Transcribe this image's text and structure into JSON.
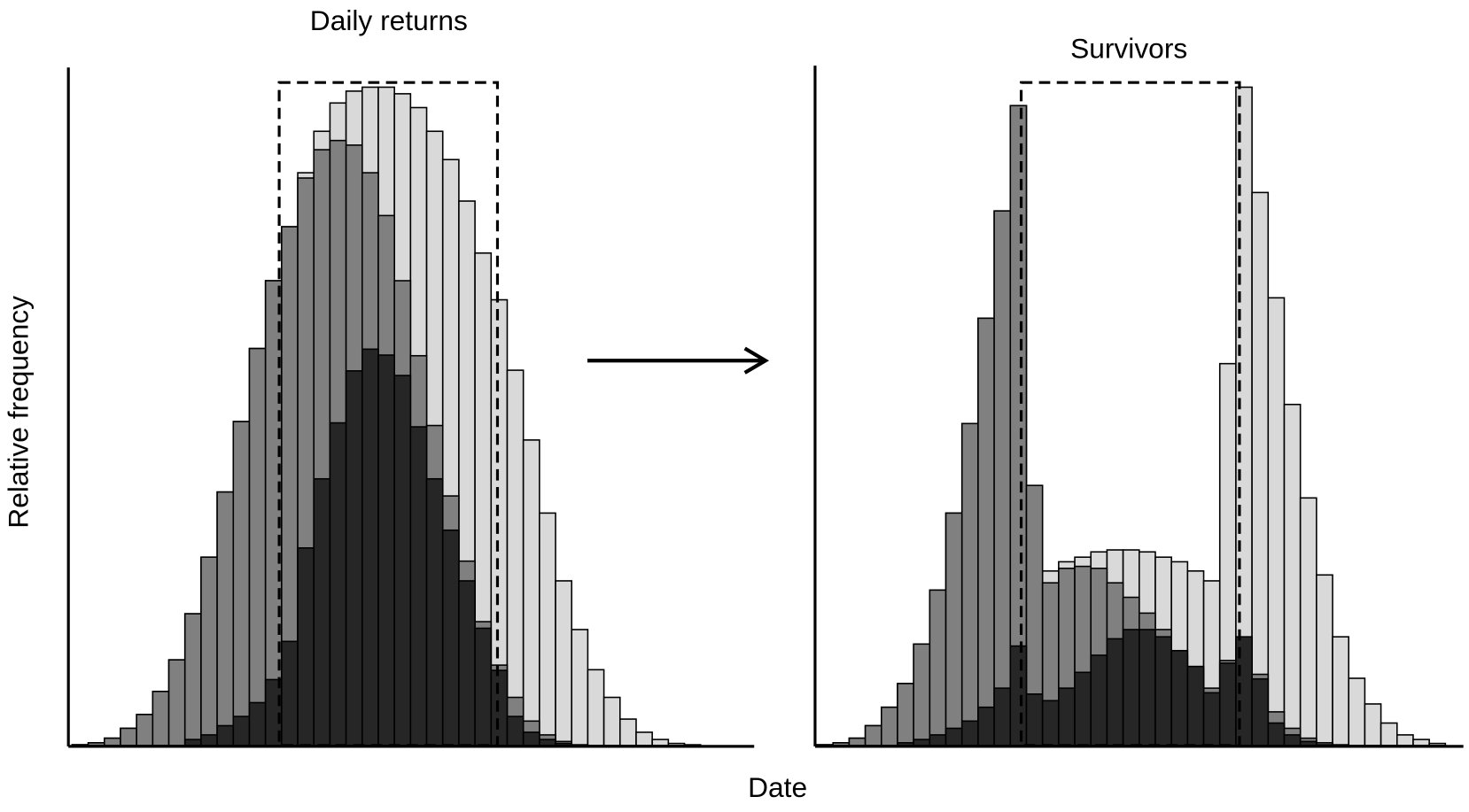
{
  "ylabel": "Relative frequency",
  "xlabel": "Date",
  "chart_data": [
    {
      "type": "bar",
      "title": "Daily returns",
      "ylim": [
        0,
        100
      ],
      "categories": [
        null,
        null,
        null,
        null,
        null,
        null,
        null,
        null,
        null,
        null,
        null,
        null,
        null,
        null,
        null,
        null,
        null,
        null,
        null,
        null,
        null,
        null,
        null,
        null,
        null,
        null,
        null,
        null,
        null,
        null,
        null,
        null,
        null,
        null,
        null,
        null,
        null,
        null,
        null,
        null,
        null,
        null
      ],
      "series": [
        {
          "color": "#d9d9d9",
          "values": [
            0.1,
            0.4,
            1.1,
            2.6,
            4.7,
            8.2,
            13,
            20,
            28.6,
            38.5,
            49.2,
            60.3,
            70.6,
            78.8,
            87,
            93.3,
            97.6,
            99.4,
            100,
            100,
            99,
            96.9,
            93.3,
            89,
            82.7,
            74.8,
            67.7,
            57,
            46.4,
            35.3,
            25,
            17.6,
            11.5,
            7.3,
            4,
            2,
            0.9,
            0.3,
            0.1,
            0,
            0,
            0
          ]
        },
        {
          "color": "#808080",
          "values": [
            0.1,
            0.4,
            1.1,
            2.6,
            4.7,
            8.2,
            13,
            20,
            28.6,
            38.5,
            49.2,
            60.3,
            70.6,
            78.8,
            86.2,
            90.5,
            91.9,
            91.2,
            87,
            80.5,
            70.6,
            59.2,
            48.6,
            37.9,
            28,
            18.8,
            12.2,
            7.3,
            3.7,
            1.6,
            0.6,
            0.1,
            0,
            0,
            0,
            0,
            0,
            0,
            0,
            0,
            0,
            0
          ]
        },
        {
          "color": "#262626",
          "values": [
            0,
            0,
            0,
            0,
            0,
            0,
            0,
            0.9,
            1.6,
            3,
            4.4,
            6.5,
            10,
            15.8,
            30,
            40.5,
            49,
            56.9,
            60.2,
            59.3,
            56.2,
            48.4,
            40.5,
            32.7,
            25,
            17.8,
            11.4,
            4.4,
            2,
            0.9,
            0.3,
            0,
            0,
            0,
            0,
            0,
            0,
            0,
            0,
            0,
            0,
            0
          ]
        }
      ]
    },
    {
      "type": "bar",
      "title": "Survivors",
      "ylim": [
        0,
        100
      ],
      "categories": [
        null,
        null,
        null,
        null,
        null,
        null,
        null,
        null,
        null,
        null,
        null,
        null,
        null,
        null,
        null,
        null,
        null,
        null,
        null,
        null,
        null,
        null,
        null,
        null,
        null,
        null,
        null,
        null,
        null,
        null,
        null,
        null,
        null,
        null,
        null,
        null,
        null,
        null,
        null,
        null
      ],
      "series": [
        {
          "color": "#d9d9d9",
          "values": [
            0.1,
            0.4,
            1.1,
            3,
            5.8,
            9.4,
            15.4,
            23.6,
            35.3,
            48.9,
            64.9,
            81.2,
            97.2,
            24.2,
            26.5,
            27.9,
            28.6,
            29.4,
            29.7,
            29.7,
            29.4,
            28.6,
            27.9,
            26.5,
            25,
            58,
            100,
            84,
            68,
            51.8,
            37.6,
            25.9,
            16.5,
            10.2,
            6.3,
            3.4,
            1.6,
            0.9,
            0.3,
            0
          ]
        },
        {
          "color": "#808080",
          "values": [
            0.1,
            0.4,
            1.1,
            3,
            5.8,
            9.4,
            15.4,
            23.6,
            35.3,
            48.9,
            64.9,
            81.2,
            97.2,
            39.5,
            24.7,
            26.9,
            27.2,
            26.9,
            24.7,
            22.5,
            20.1,
            17.6,
            13.7,
            11.5,
            8.7,
            12.9,
            16.2,
            10.8,
            5.1,
            2.6,
            1.1,
            0.4,
            0.1,
            0,
            0,
            0,
            0,
            0,
            0,
            0
          ]
        },
        {
          "color": "#262626",
          "values": [
            0,
            0,
            0,
            0,
            0,
            0.4,
            0.9,
            1.6,
            2.6,
            3.7,
            5.8,
            8.7,
            15.1,
            7.8,
            6.8,
            8.7,
            11.1,
            13.7,
            16.2,
            17.6,
            17.6,
            16.5,
            14.4,
            12,
            8,
            12.5,
            16.5,
            10.1,
            3.4,
            1.6,
            0.6,
            0.1,
            0,
            0,
            0,
            0,
            0,
            0,
            0,
            0
          ]
        }
      ]
    }
  ]
}
